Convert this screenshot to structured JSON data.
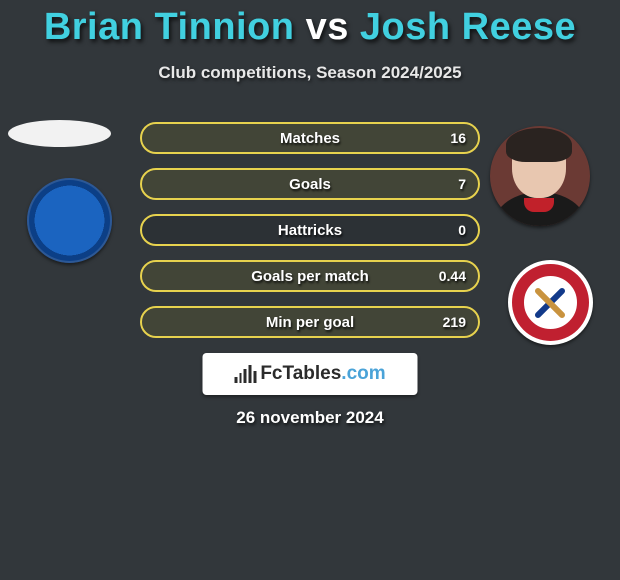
{
  "title": {
    "player1": "Brian Tinnion",
    "player2": "Josh Reese",
    "vs": "vs",
    "player1_color": "#41d0e0",
    "player2_color": "#41d0e0",
    "vs_color": "#ffffff"
  },
  "subtitle": "Club competitions, Season 2024/2025",
  "stats_style": {
    "border_p1": "#5bd8e6",
    "border_p2": "#e7d24e",
    "fill_p2": "rgba(231,210,78,0.12)"
  },
  "stats": [
    {
      "label": "Matches",
      "value_right": "16",
      "fill_right_pct": 100
    },
    {
      "label": "Goals",
      "value_right": "7",
      "fill_right_pct": 100
    },
    {
      "label": "Hattricks",
      "value_right": "0",
      "fill_right_pct": 0
    },
    {
      "label": "Goals per match",
      "value_right": "0.44",
      "fill_right_pct": 100
    },
    {
      "label": "Min per goal",
      "value_right": "219",
      "fill_right_pct": 100
    }
  ],
  "brand": {
    "name_a": "FcTables",
    "name_b": ".com"
  },
  "date": "26 november 2024"
}
